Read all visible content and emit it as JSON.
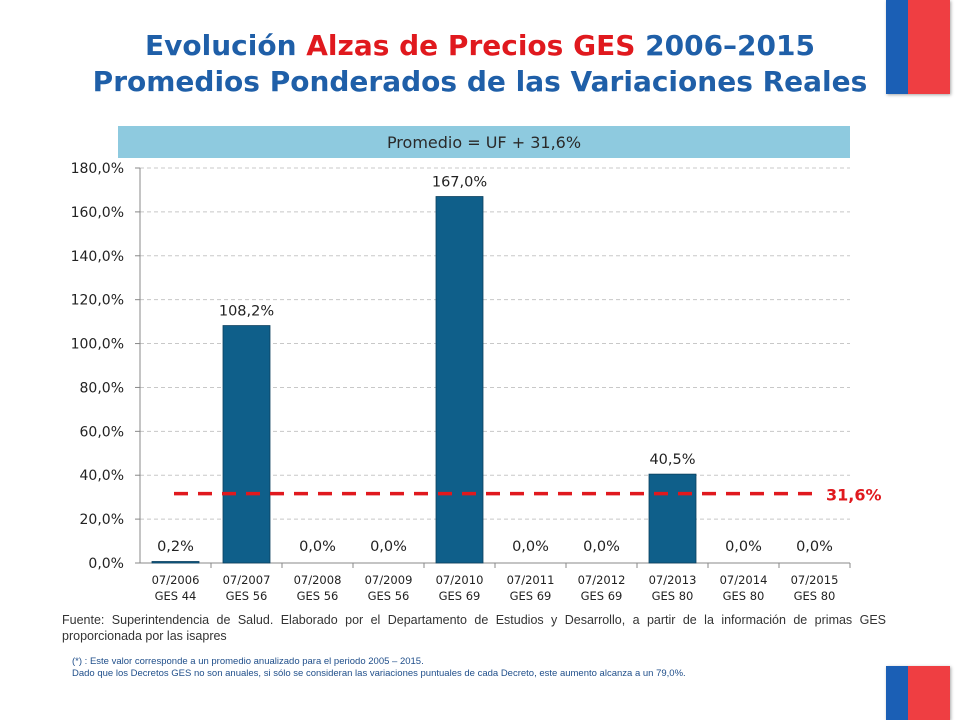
{
  "title": {
    "line1_pre": "Evolución ",
    "line1_accent": "Alzas de Precios GES",
    "line1_post": " 2006–2015",
    "line2": "Promedios Ponderados de las Variaciones Reales"
  },
  "average_banner": "Promedio = UF + 31,6%",
  "colors": {
    "title": "#1f5fa8",
    "accent": "#e0191e",
    "bars": "#0f5f8a",
    "avg_line": "#e0191e",
    "banner": "#8ecadf"
  },
  "chart_data": {
    "type": "bar",
    "categories": [
      [
        "07/2006",
        "GES 44"
      ],
      [
        "07/2007",
        "GES 56"
      ],
      [
        "07/2008",
        "GES 56"
      ],
      [
        "07/2009",
        "GES 56"
      ],
      [
        "07/2010",
        "GES 69"
      ],
      [
        "07/2011",
        "GES 69"
      ],
      [
        "07/2012",
        "GES 69"
      ],
      [
        "07/2013",
        "GES 80"
      ],
      [
        "07/2014",
        "GES 80"
      ],
      [
        "07/2015",
        "GES 80"
      ]
    ],
    "values": [
      0.2,
      108.2,
      0.0,
      0.0,
      167.0,
      0.0,
      0.0,
      40.5,
      0.0,
      0.0
    ],
    "data_labels": [
      "0,2%",
      "108,2%",
      "0,0%",
      "0,0%",
      "167,0%",
      "0,0%",
      "0,0%",
      "40,5%",
      "0,0%",
      "0,0%"
    ],
    "ylim": [
      0,
      180
    ],
    "yticks": [
      0,
      20,
      40,
      60,
      80,
      100,
      120,
      140,
      160,
      180
    ],
    "ytick_labels": [
      "0,0%",
      "20,0%",
      "40,0%",
      "60,0%",
      "80,0%",
      "100,0%",
      "120,0%",
      "140,0%",
      "160,0%",
      "180,0%"
    ],
    "reference_line": {
      "value": 31.6,
      "label": "31,6%",
      "style": "dashed"
    },
    "grid": true,
    "legend": false
  },
  "source": "Fuente: Superintendencia de Salud. Elaborado por el Departamento de Estudios y Desarrollo, a partir de la información de primas GES proporcionada por las isapres",
  "note_line1": "(*) : Este valor corresponde a un promedio anualizado para el periodo 2005 – 2015.",
  "note_line2": "Dado que los Decretos GES no son anuales, si sólo se consideran las variaciones puntuales de cada Decreto, este aumento alcanza a un 79,0%."
}
